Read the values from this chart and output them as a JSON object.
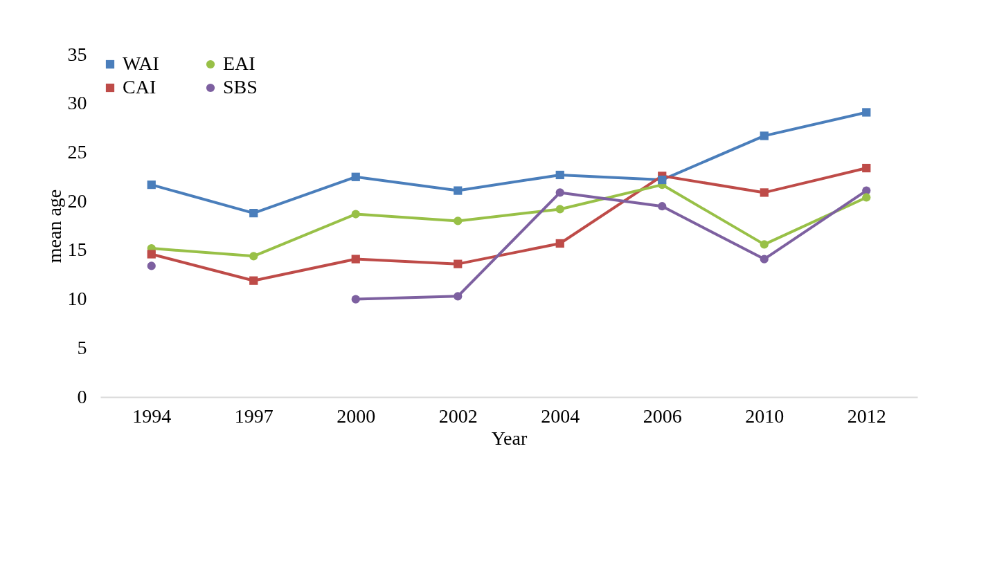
{
  "chart_data": {
    "type": "line",
    "xlabel": "Year",
    "ylabel": "mean age",
    "categories": [
      "1994",
      "1997",
      "2000",
      "2002",
      "2004",
      "2006",
      "2010",
      "2012"
    ],
    "ylim": [
      0,
      35
    ],
    "yticks": [
      0,
      5,
      10,
      15,
      20,
      25,
      30,
      35
    ],
    "grid": false,
    "legend": "top left",
    "series": [
      {
        "name": "WAI",
        "color": "#4a7ebb",
        "marker": "square",
        "values": [
          21.7,
          18.8,
          22.5,
          21.1,
          22.7,
          22.2,
          26.7,
          29.1
        ]
      },
      {
        "name": "CAI",
        "color": "#be4b48",
        "marker": "square",
        "values": [
          14.6,
          11.9,
          14.1,
          13.6,
          15.7,
          22.6,
          20.9,
          23.4
        ]
      },
      {
        "name": "EAI",
        "color": "#98c047",
        "marker": "circle",
        "values": [
          15.2,
          14.4,
          18.7,
          18.0,
          19.2,
          21.7,
          15.6,
          20.4
        ]
      },
      {
        "name": "SBS",
        "color": "#7d60a0",
        "marker": "circle",
        "values": [
          13.4,
          null,
          10.0,
          10.3,
          20.9,
          19.5,
          14.1,
          21.1
        ]
      }
    ]
  }
}
